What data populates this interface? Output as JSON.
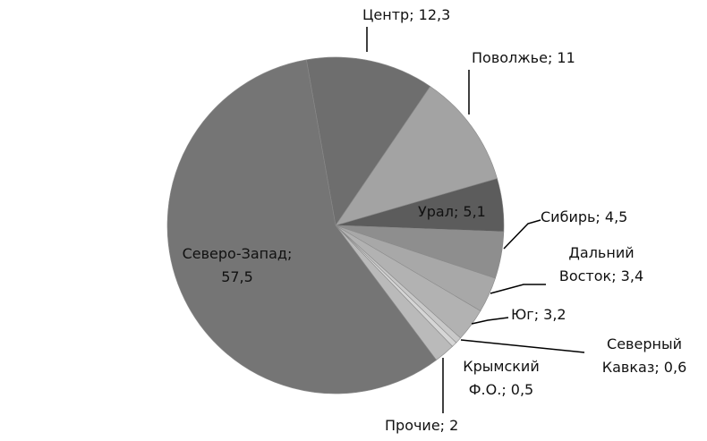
{
  "chart_data": {
    "type": "pie",
    "categories": [
      "Центр",
      "Поволжье",
      "Урал",
      "Сибирь",
      "Дальний Восток",
      "Юг",
      "Северный Кавказ",
      "Крымский Ф.О.",
      "Прочие",
      "Северо-Запад"
    ],
    "values": [
      12.3,
      11,
      5.1,
      4.5,
      3.4,
      3.2,
      0.6,
      0.5,
      2,
      57.5
    ],
    "value_labels": [
      "; 12,3",
      "; 11",
      "; 5,1",
      "; 4,5",
      "; 3,4",
      "; 3,2",
      "; 0,6",
      "; 0,5",
      "; 2",
      "; 57,5"
    ],
    "colors": [
      "#6e6e6e",
      "#a3a3a3",
      "#5c5c5c",
      "#8e8e8e",
      "#a8a8a8",
      "#b2b2b2",
      "#c9c9c9",
      "#d6d6d6",
      "#bababa",
      "#757575"
    ]
  }
}
